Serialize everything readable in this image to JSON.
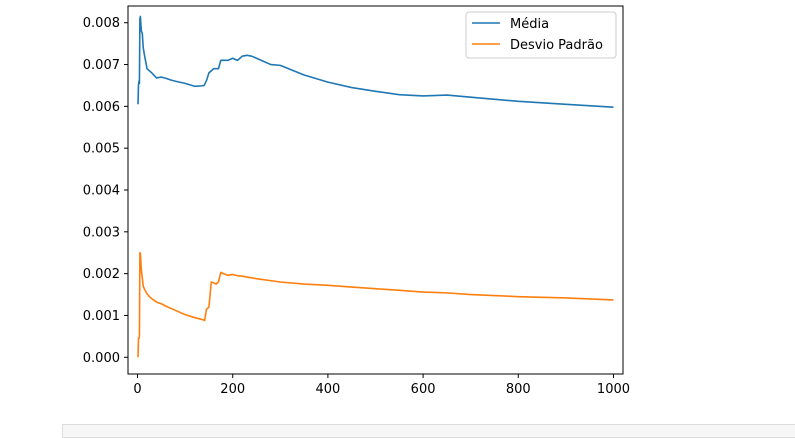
{
  "chart_data": {
    "type": "line",
    "title": "",
    "xlabel": "",
    "ylabel": "",
    "xlim": [
      -20,
      1020
    ],
    "ylim": [
      -0.0004,
      0.0084
    ],
    "xticks": [
      0,
      200,
      400,
      600,
      800,
      1000
    ],
    "yticks": [
      0.0,
      0.001,
      0.002,
      0.003,
      0.004,
      0.005,
      0.006,
      0.007,
      0.008
    ],
    "xtick_labels": [
      "0",
      "200",
      "400",
      "600",
      "800",
      "1000"
    ],
    "ytick_labels": [
      "0.000",
      "0.001",
      "0.002",
      "0.003",
      "0.004",
      "0.005",
      "0.006",
      "0.007",
      "0.008"
    ],
    "grid": false,
    "legend_position": "top-right",
    "series": [
      {
        "name": "Média",
        "color": "#1f77b4",
        "x": [
          1,
          2,
          3,
          4,
          5,
          6,
          8,
          10,
          12,
          15,
          20,
          25,
          30,
          40,
          50,
          60,
          70,
          80,
          100,
          120,
          135,
          140,
          145,
          150,
          160,
          170,
          175,
          180,
          190,
          200,
          210,
          220,
          230,
          240,
          260,
          280,
          300,
          350,
          400,
          450,
          500,
          550,
          600,
          650,
          700,
          800,
          900,
          1000
        ],
        "y": [
          0.00605,
          0.0065,
          0.0066,
          0.00655,
          0.0081,
          0.00815,
          0.0078,
          0.00775,
          0.0074,
          0.0072,
          0.0069,
          0.00685,
          0.0068,
          0.00668,
          0.0067,
          0.00667,
          0.00663,
          0.0066,
          0.00655,
          0.00648,
          0.00649,
          0.0065,
          0.00662,
          0.0068,
          0.0069,
          0.0069,
          0.0071,
          0.0071,
          0.0071,
          0.00715,
          0.0071,
          0.0072,
          0.00722,
          0.0072,
          0.0071,
          0.007,
          0.00698,
          0.00675,
          0.00658,
          0.00645,
          0.00636,
          0.00628,
          0.00625,
          0.00627,
          0.00622,
          0.00612,
          0.00605,
          0.00598
        ]
      },
      {
        "name": "Desvio Padrão",
        "color": "#ff7f0e",
        "x": [
          1,
          2,
          3,
          4,
          5,
          6,
          8,
          10,
          12,
          15,
          20,
          25,
          30,
          40,
          50,
          60,
          80,
          100,
          120,
          140,
          141,
          145,
          150,
          155,
          160,
          165,
          170,
          175,
          180,
          190,
          200,
          210,
          220,
          250,
          300,
          350,
          400,
          450,
          500,
          550,
          600,
          650,
          700,
          800,
          900,
          1000
        ],
        "y": [
          0.0,
          0.00045,
          0.00045,
          0.0005,
          0.0025,
          0.00248,
          0.0021,
          0.0019,
          0.0017,
          0.00162,
          0.00152,
          0.00145,
          0.0014,
          0.00132,
          0.00128,
          0.00122,
          0.00112,
          0.00102,
          0.00095,
          0.00089,
          0.00088,
          0.00115,
          0.0012,
          0.0018,
          0.00178,
          0.00175,
          0.0018,
          0.00203,
          0.002,
          0.00196,
          0.00198,
          0.00195,
          0.00194,
          0.00188,
          0.0018,
          0.00175,
          0.00172,
          0.00168,
          0.00164,
          0.0016,
          0.00156,
          0.00154,
          0.0015,
          0.00145,
          0.00142,
          0.00137
        ]
      }
    ]
  }
}
